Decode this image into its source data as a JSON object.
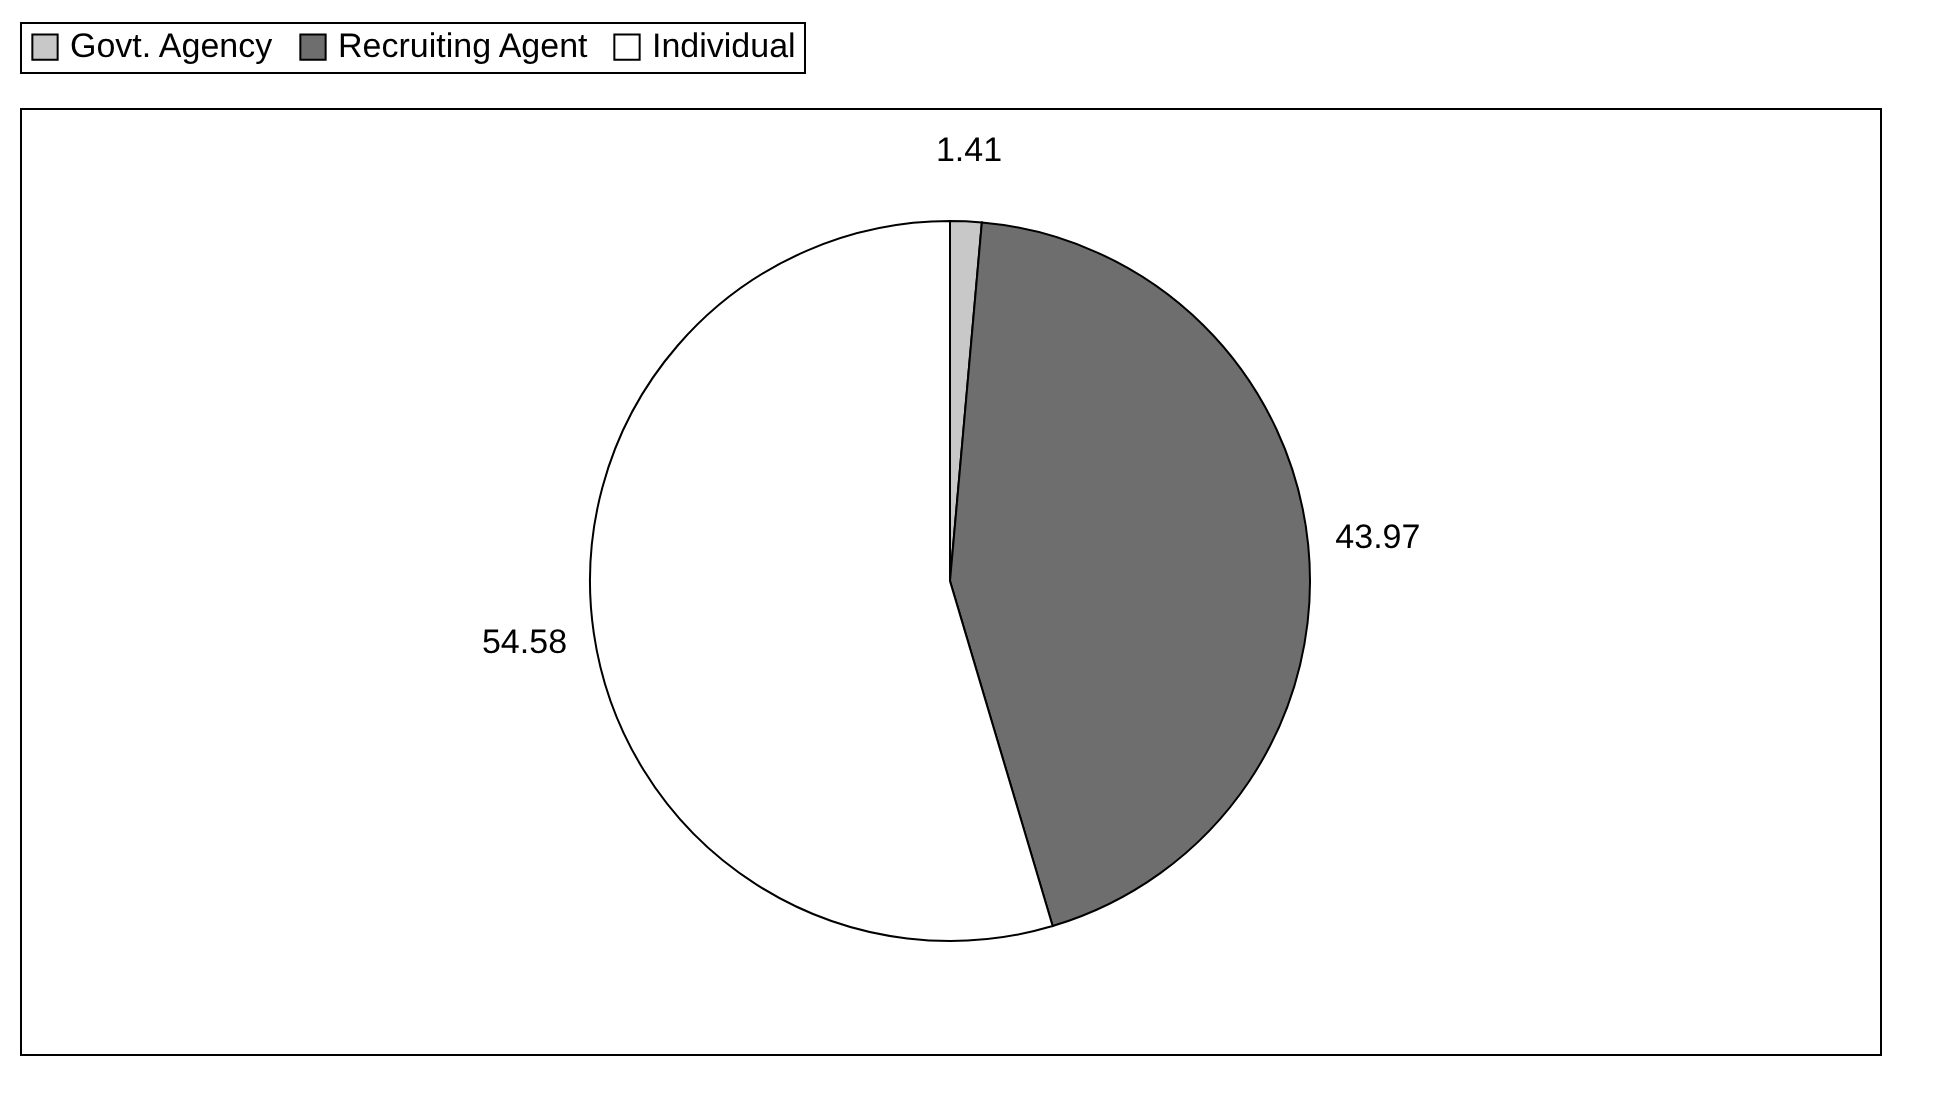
{
  "chart_data": {
    "type": "pie",
    "categories": [
      "Govt. Agency",
      "Recruiting Agent",
      "Individual"
    ],
    "values": [
      1.41,
      43.97,
      54.58
    ],
    "colors": [
      "#c8c8c8",
      "#6e6e6e",
      "#ffffff"
    ],
    "data_labels": true,
    "legend": "top"
  }
}
